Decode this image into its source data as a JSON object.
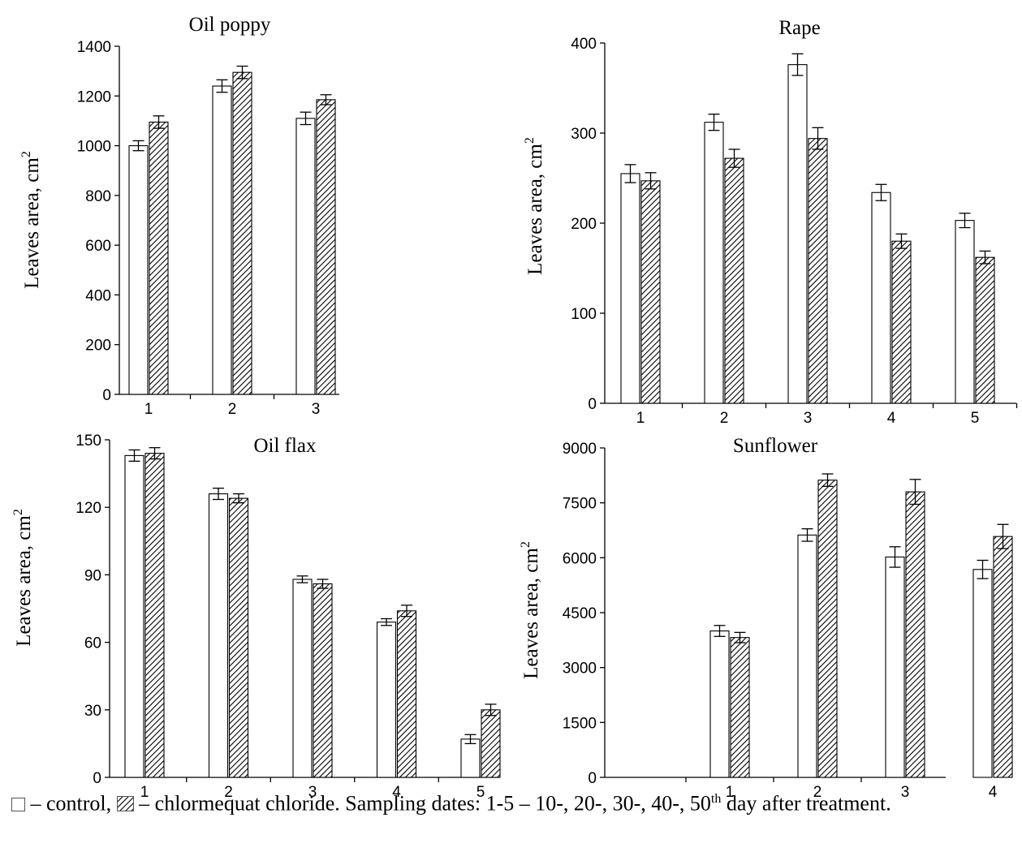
{
  "chart_data": [
    {
      "type": "bar",
      "title": "Oil poppy",
      "ylabel": "Leaves area, cm",
      "ylabel_sup": "2",
      "categories": [
        "1",
        "2",
        "3"
      ],
      "yticks": [
        "0",
        "200",
        "400",
        "600",
        "800",
        "1000",
        "1200",
        "1400"
      ],
      "ylim": [
        0,
        1400
      ],
      "series": [
        {
          "name": "control",
          "values": [
            1000,
            1240,
            1110
          ],
          "errors": [
            20,
            25,
            25
          ]
        },
        {
          "name": "chlormequat chloride",
          "values": [
            1095,
            1295,
            1185
          ],
          "errors": [
            25,
            25,
            20
          ]
        }
      ]
    },
    {
      "type": "bar",
      "title": "Rape",
      "ylabel": "Leaves area, cm",
      "ylabel_sup": "2",
      "categories": [
        "1",
        "2",
        "3",
        "4",
        "5"
      ],
      "yticks": [
        "0",
        "100",
        "200",
        "300",
        "400"
      ],
      "ylim": [
        0,
        400
      ],
      "series": [
        {
          "name": "control",
          "values": [
            255,
            312,
            376,
            234,
            203
          ],
          "errors": [
            10,
            9,
            12,
            9,
            8
          ]
        },
        {
          "name": "chlormequat chloride",
          "values": [
            247,
            272,
            294,
            180,
            162
          ],
          "errors": [
            9,
            10,
            12,
            8,
            7
          ]
        }
      ]
    },
    {
      "type": "bar",
      "title": "Oil flax",
      "ylabel": "Leaves area, cm",
      "ylabel_sup": "2",
      "categories": [
        "1",
        "2",
        "3",
        "4",
        "5"
      ],
      "yticks": [
        "0",
        "30",
        "60",
        "90",
        "120",
        "150"
      ],
      "ylim": [
        0,
        150
      ],
      "series": [
        {
          "name": "control",
          "values": [
            143,
            126,
            88,
            69,
            17
          ],
          "errors": [
            2.5,
            2.5,
            1.5,
            1.5,
            2
          ]
        },
        {
          "name": "chlormequat chloride",
          "values": [
            144,
            124,
            86,
            74,
            30
          ],
          "errors": [
            2.5,
            2,
            2,
            2.5,
            2.5
          ]
        }
      ]
    },
    {
      "type": "bar",
      "title": "Sunflower",
      "ylabel": "Leaves area, cm",
      "ylabel_sup": "2",
      "categories": [
        "1",
        "2",
        "3",
        "4"
      ],
      "yticks": [
        "0",
        "1500",
        "3000",
        "4500",
        "6000",
        "7500",
        "9000"
      ],
      "ylim": [
        0,
        9000
      ],
      "series": [
        {
          "name": "control",
          "values": [
            4000,
            6620,
            6020,
            5680
          ],
          "errors": [
            150,
            170,
            280,
            250
          ]
        },
        {
          "name": "chlormequat chloride",
          "values": [
            3820,
            8120,
            7800,
            6580
          ],
          "errors": [
            140,
            170,
            340,
            330
          ]
        }
      ]
    }
  ],
  "caption": {
    "legend_control": "– control,",
    "legend_treated": "– chlormequat chloride. Sampling dates: 1-5 – 10-, 20-, 30-, 40-, 50",
    "sup": "th",
    "tail": " day after treatment."
  },
  "colors": {
    "control_fill": "#ffffff",
    "hatch": "#000000"
  }
}
